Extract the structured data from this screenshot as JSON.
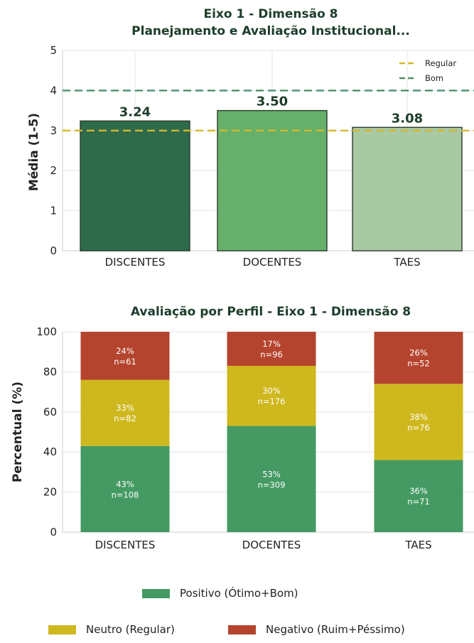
{
  "chart_data": [
    {
      "type": "bar",
      "title_line1": "Eixo 1 - Dimensão 8",
      "title_line2": "Planejamento e Avaliação Institucional...",
      "ylabel": "Média (1-5)",
      "ylim": [
        0,
        5
      ],
      "yticks": [
        "0",
        "1",
        "2",
        "3",
        "4",
        "5"
      ],
      "categories": [
        "DISCENTES",
        "DOCENTES",
        "TAES"
      ],
      "values": [
        3.24,
        3.5,
        3.08
      ],
      "value_labels": [
        "3.24",
        "3.50",
        "3.08"
      ],
      "bar_colors": [
        "#2e6b4a",
        "#65b06b",
        "#a9c9a4"
      ],
      "reference_lines": [
        {
          "name": "Regular",
          "value": 3,
          "color": "#d4b82c"
        },
        {
          "name": "Bom",
          "value": 4,
          "color": "#4a8f6a"
        }
      ],
      "grid": true,
      "legend_position": "top-right"
    },
    {
      "type": "bar",
      "stacked": true,
      "title": "Avaliação por Perfil - Eixo 1 - Dimensão 8",
      "ylabel": "Percentual (%)",
      "ylim": [
        0,
        100
      ],
      "yticks": [
        "0",
        "20",
        "40",
        "60",
        "80",
        "100"
      ],
      "categories": [
        "DISCENTES",
        "DOCENTES",
        "TAES"
      ],
      "series": [
        {
          "name": "Positivo (Ótimo+Bom)",
          "color": "#449a62",
          "values": [
            43,
            53,
            36
          ],
          "pct_labels": [
            "43%",
            "53%",
            "36%"
          ],
          "n_labels": [
            "n=108",
            "n=309",
            "n=71"
          ]
        },
        {
          "name": "Neutro (Regular)",
          "color": "#cfb81e",
          "values": [
            33,
            30,
            38
          ],
          "pct_labels": [
            "33%",
            "30%",
            "38%"
          ],
          "n_labels": [
            "n=82",
            "n=176",
            "n=76"
          ]
        },
        {
          "name": "Negativo (Ruim+Péssimo)",
          "color": "#b5442e",
          "values": [
            24,
            17,
            26
          ],
          "pct_labels": [
            "24%",
            "17%",
            "26%"
          ],
          "n_labels": [
            "n=61",
            "n=96",
            "n=52"
          ]
        }
      ],
      "grid": true,
      "legend_position": "bottom"
    }
  ]
}
